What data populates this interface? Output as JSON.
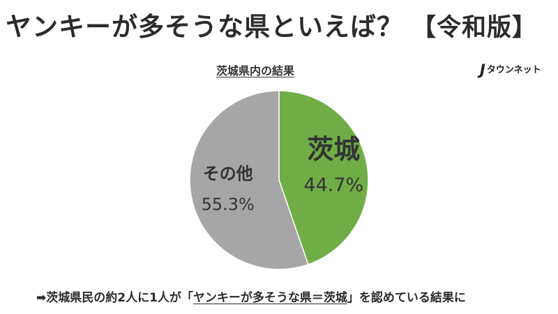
{
  "header": {
    "title": "ヤンキーが多そうな県といえば？",
    "edition": "【令和版】"
  },
  "logo": {
    "mark": "J",
    "text": "タウンネット"
  },
  "chart_data": {
    "type": "pie",
    "title": "茨城県内の結果",
    "labels": [
      "茨城",
      "その他"
    ],
    "values": [
      44.7,
      55.3
    ],
    "value_labels": [
      "44.7%",
      "55.3%"
    ],
    "colors": [
      "#70ad47",
      "#a6a6a6"
    ],
    "start": "12 o'clock",
    "direction": "clockwise"
  },
  "footer": {
    "arrow": "➡",
    "prefix": "茨城県民の約2人に1人が「",
    "quote": "ヤンキーが多そうな県＝茨城",
    "suffix": "」を認めている結果に"
  }
}
